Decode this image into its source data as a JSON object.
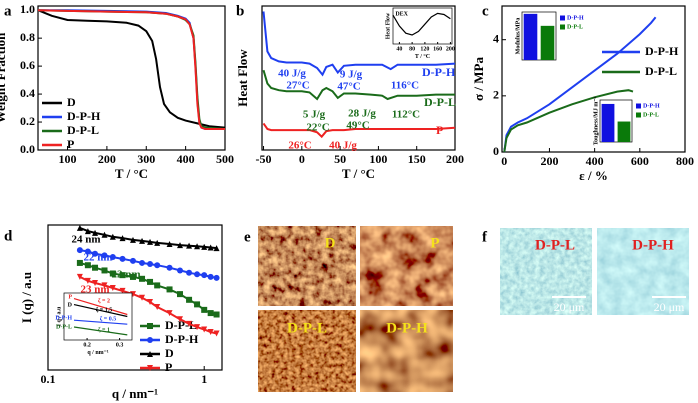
{
  "chart_data": [
    {
      "panel": "a",
      "type": "line",
      "x_label": "T / °C",
      "y_label": "Weight Fraction",
      "xlim": [
        25,
        500
      ],
      "xticks": [
        100,
        200,
        300,
        400,
        500
      ],
      "ylim": [
        0,
        1.03
      ],
      "yticks": [
        {
          "value": 0,
          "label": "0.0"
        },
        0.2,
        0.4,
        0.6,
        0.8,
        {
          "value": 1,
          "label": "1.0"
        }
      ],
      "legend": "lower left",
      "series": [
        {
          "name": "D",
          "color": "#000000",
          "x": [
            25,
            60,
            100,
            150,
            200,
            250,
            280,
            300,
            315,
            325,
            335,
            345,
            360,
            380,
            400,
            430,
            460,
            500
          ],
          "values": [
            1.0,
            0.96,
            0.93,
            0.925,
            0.92,
            0.91,
            0.89,
            0.85,
            0.78,
            0.65,
            0.45,
            0.33,
            0.27,
            0.23,
            0.21,
            0.19,
            0.17,
            0.16
          ]
        },
        {
          "name": "D-P-H",
          "color": "#1f3ff0",
          "x": [
            25,
            100,
            200,
            300,
            350,
            380,
            400,
            410,
            420,
            425,
            430,
            435,
            440,
            450,
            500
          ],
          "values": [
            1.0,
            1.0,
            0.995,
            0.99,
            0.98,
            0.96,
            0.94,
            0.91,
            0.8,
            0.6,
            0.35,
            0.2,
            0.16,
            0.15,
            0.15
          ]
        },
        {
          "name": "D-P-L",
          "color": "#1a6b1a",
          "x": [
            25,
            100,
            200,
            300,
            350,
            380,
            400,
            410,
            420,
            425,
            430,
            435,
            440,
            450,
            500
          ],
          "values": [
            1.0,
            0.995,
            0.99,
            0.985,
            0.975,
            0.955,
            0.93,
            0.9,
            0.82,
            0.62,
            0.38,
            0.22,
            0.17,
            0.16,
            0.15
          ]
        },
        {
          "name": "P",
          "color": "#ee2222",
          "x": [
            25,
            100,
            200,
            300,
            350,
            380,
            400,
            410,
            420,
            425,
            430,
            435,
            440,
            450,
            500
          ],
          "values": [
            1.0,
            0.995,
            0.99,
            0.985,
            0.975,
            0.955,
            0.935,
            0.9,
            0.8,
            0.58,
            0.33,
            0.19,
            0.16,
            0.15,
            0.15
          ]
        }
      ]
    },
    {
      "panel": "b",
      "type": "line",
      "x_label": "T / °C",
      "y_label": "Heat Flow",
      "xlim": [
        -52,
        200
      ],
      "xticks": [
        -50,
        0,
        50,
        100,
        150,
        200
      ],
      "ylim": [
        0,
        13
      ],
      "annotations": [
        "40 J/g",
        "27°C",
        "9 J/g",
        "47°C",
        "116°C",
        "5 J/g",
        "22°C",
        "28 J/g",
        "49°C",
        "112°C",
        "26°C",
        "40 J/g"
      ],
      "series": [
        {
          "name": "D-P-H",
          "color": "#1f3ff0",
          "x": [
            -50,
            -45,
            -40,
            -30,
            -20,
            -10,
            0,
            10,
            20,
            27,
            32,
            40,
            47,
            55,
            70,
            90,
            105,
            116,
            125,
            150,
            175,
            200
          ],
          "values": [
            12.5,
            8.9,
            8.3,
            8.0,
            7.9,
            7.9,
            7.9,
            7.8,
            7.4,
            6.8,
            7.5,
            7.7,
            7.0,
            7.6,
            7.7,
            7.7,
            7.7,
            7.3,
            7.7,
            7.7,
            7.7,
            7.8
          ]
        },
        {
          "name": "D-P-L",
          "color": "#1a6b1a",
          "x": [
            -50,
            -45,
            -40,
            -30,
            -20,
            -10,
            0,
            10,
            20,
            27,
            32,
            40,
            47,
            55,
            70,
            90,
            105,
            112,
            125,
            150,
            175,
            200
          ],
          "values": [
            7.2,
            6.0,
            5.6,
            5.4,
            5.3,
            5.3,
            5.3,
            5.2,
            4.6,
            5.4,
            5.6,
            5.3,
            4.7,
            5.1,
            5.1,
            5.0,
            4.9,
            4.6,
            4.9,
            4.9,
            5.0,
            5.0
          ]
        },
        {
          "name": "P",
          "color": "#ee2222",
          "x": [
            -50,
            -45,
            -40,
            -30,
            -20,
            -10,
            0,
            10,
            20,
            26,
            32,
            40,
            47,
            55,
            70,
            90,
            105,
            116,
            125,
            150,
            175,
            200
          ],
          "values": [
            2.4,
            1.9,
            1.8,
            1.8,
            1.8,
            1.8,
            1.8,
            1.8,
            1.6,
            1.2,
            1.7,
            1.8,
            1.8,
            1.8,
            1.9,
            1.9,
            1.9,
            1.9,
            1.9,
            1.9,
            1.9,
            2.0
          ]
        }
      ]
    },
    {
      "type": "line",
      "x_label": "T / °C",
      "y_label": "Heat Flow",
      "xlim": [
        20,
        205
      ],
      "xticks": [
        40,
        80,
        120,
        160,
        200
      ],
      "ylim": [
        0,
        10
      ],
      "series": [
        {
          "name": "DEX",
          "color": "#000000",
          "x": [
            20,
            40,
            60,
            80,
            100,
            120,
            140,
            160,
            180,
            200
          ],
          "values": [
            8,
            5,
            3,
            2.5,
            3.5,
            5.5,
            7.5,
            8.5,
            8.2,
            7
          ]
        }
      ]
    },
    {
      "panel": "c",
      "type": "line",
      "x_label": "ε / %",
      "y_label": "σ / MPa",
      "xlim": [
        -10,
        800
      ],
      "xticks": [
        0,
        200,
        400,
        600,
        800
      ],
      "ylim": [
        0,
        5.2
      ],
      "yticks": [
        0,
        2,
        4
      ],
      "legend": "upper right",
      "series": [
        {
          "name": "D-P-H",
          "color": "#1f3ff0",
          "x": [
            0,
            10,
            30,
            60,
            100,
            200,
            300,
            400,
            500,
            600,
            650,
            670
          ],
          "values": [
            0,
            0.6,
            0.9,
            1.05,
            1.2,
            1.7,
            2.3,
            2.9,
            3.5,
            4.2,
            4.6,
            4.8
          ]
        },
        {
          "name": "D-P-L",
          "color": "#1a6b1a",
          "x": [
            0,
            10,
            30,
            60,
            100,
            200,
            300,
            400,
            500,
            550,
            570
          ],
          "values": [
            0,
            0.5,
            0.8,
            0.95,
            1.05,
            1.4,
            1.7,
            1.95,
            2.15,
            2.2,
            2.15
          ]
        }
      ]
    },
    {
      "type": "bar",
      "y_label": "Modulus/MPa",
      "categories": [
        "D-P-H",
        "D-P-L"
      ],
      "values": [
        5.0,
        3.7
      ],
      "colors": [
        "#1010e0",
        "#0a7a0a"
      ],
      "ylim": [
        0,
        5.2
      ]
    },
    {
      "type": "bar",
      "y_label": "Toughness/MJ m⁻³",
      "categories": [
        "D-P-H",
        "D-P-L"
      ],
      "values": [
        14.5,
        7.8
      ],
      "colors": [
        "#1010e0",
        "#0a7a0a"
      ],
      "ylim": [
        0,
        16
      ]
    },
    {
      "panel": "d",
      "type": "line",
      "x_label": "q / nm⁻¹",
      "y_label": "I (q) / a.u",
      "log_x": true,
      "log_y": true,
      "xlim": [
        0.1,
        1.3
      ],
      "xticks": [
        0.1,
        1
      ],
      "ylim": [
        5,
        1000
      ],
      "legend": "lower right",
      "annotations": [
        "24 nm",
        "22 nm",
        "22 nm",
        "23 nm"
      ],
      "series": [
        {
          "name": "D-P-L",
          "color": "#1a6b1a",
          "marker": "square",
          "x": [
            0.16,
            0.18,
            0.2,
            0.23,
            0.26,
            0.3,
            0.35,
            0.4,
            0.45,
            0.5,
            0.6,
            0.7,
            0.8,
            0.9,
            1.0,
            1.1,
            1.2
          ],
          "values": [
            250,
            230,
            210,
            190,
            170,
            160,
            150,
            140,
            125,
            110,
            95,
            80,
            65,
            55,
            45,
            40,
            38
          ]
        },
        {
          "name": "D-P-H",
          "color": "#1f3ff0",
          "marker": "circle",
          "x": [
            0.16,
            0.18,
            0.2,
            0.23,
            0.26,
            0.3,
            0.35,
            0.4,
            0.45,
            0.5,
            0.6,
            0.7,
            0.8,
            0.9,
            1.0,
            1.1,
            1.2
          ],
          "values": [
            400,
            380,
            350,
            330,
            310,
            290,
            270,
            250,
            240,
            230,
            210,
            190,
            175,
            165,
            160,
            150,
            145
          ]
        },
        {
          "name": "D",
          "color": "#000000",
          "marker": "triangle-up",
          "x": [
            0.16,
            0.18,
            0.2,
            0.23,
            0.26,
            0.3,
            0.35,
            0.4,
            0.45,
            0.5,
            0.6,
            0.7,
            0.8,
            0.9,
            1.0,
            1.1,
            1.2
          ],
          "values": [
            900,
            800,
            750,
            700,
            650,
            620,
            580,
            560,
            540,
            520,
            500,
            480,
            470,
            460,
            450,
            440,
            430
          ]
        },
        {
          "name": "P",
          "color": "#ee2222",
          "marker": "triangle-down",
          "x": [
            0.16,
            0.18,
            0.2,
            0.23,
            0.26,
            0.3,
            0.35,
            0.4,
            0.45,
            0.5,
            0.6,
            0.7,
            0.8,
            0.9,
            1.0,
            1.1,
            1.2
          ],
          "values": [
            150,
            130,
            120,
            110,
            100,
            90,
            80,
            70,
            60,
            50,
            40,
            32,
            27,
            24,
            22,
            20,
            19
          ]
        }
      ]
    },
    {
      "type": "line",
      "x_label": "q / nm⁻¹",
      "y_label": "I q / a.u",
      "log_x": true,
      "log_y": true,
      "xlim": [
        0.15,
        0.35
      ],
      "xticks": [
        0.2,
        0.3
      ],
      "ylim": [
        1.5,
        80
      ],
      "annotations": [
        "ζ = 2",
        "ζ = 1.5",
        "ζ = 0.5",
        "ζ = 1"
      ],
      "series": [
        {
          "name": "P",
          "color": "#ee2222",
          "x": [
            0.17,
            0.33
          ],
          "values": [
            50,
            13
          ]
        },
        {
          "name": "D",
          "color": "#000000",
          "x": [
            0.17,
            0.33
          ],
          "values": [
            30,
            11
          ]
        },
        {
          "name": "D-P-H",
          "color": "#1f3ff0",
          "x": [
            0.17,
            0.33
          ],
          "values": [
            8,
            5.7
          ]
        },
        {
          "name": "D-P-L",
          "color": "#1a6b1a",
          "x": [
            0.17,
            0.33
          ],
          "values": [
            4.5,
            2.3
          ]
        }
      ]
    }
  ],
  "image_panels": [
    {
      "panel": "e",
      "tiles": [
        {
          "label": "D"
        },
        {
          "label": "P"
        },
        {
          "label": "D-P-L"
        },
        {
          "label": "D-P-H"
        }
      ]
    },
    {
      "panel": "f",
      "tiles": [
        {
          "label": "D-P-L",
          "scale_bar": "20 μm"
        },
        {
          "label": "D-P-H",
          "scale_bar": "20 μm"
        }
      ]
    }
  ]
}
